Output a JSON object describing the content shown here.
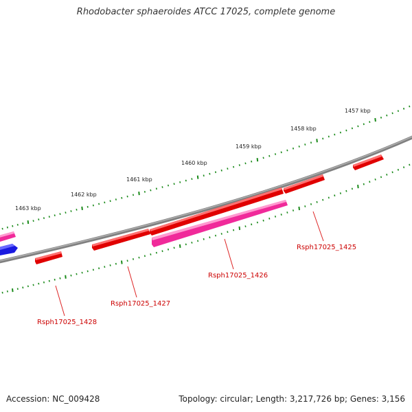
{
  "title": "Rhodobacter sphaeroides ATCC 17025, complete genome",
  "accession": "Accession: NC_009428",
  "topology": "Topology: circular; Length: 3,217,726 bp; Genes: 3,156",
  "colors": {
    "backbone": "#808080",
    "tick": "#1a8a1a",
    "gene_cds": "#e00000",
    "gene_pink": "#f02a9a",
    "gene_blue": "#1a1ae0",
    "label": "#cc0000",
    "leader": "#dd2222"
  },
  "kbp_labels": [
    "1457 kbp",
    "1458 kbp",
    "1459 kbp",
    "1460 kbp",
    "1461 kbp",
    "1462 kbp",
    "1463 kbp"
  ],
  "genes": [
    "Rsph17025_1425",
    "Rsph17025_1426",
    "Rsph17025_1427",
    "Rsph17025_1428"
  ]
}
